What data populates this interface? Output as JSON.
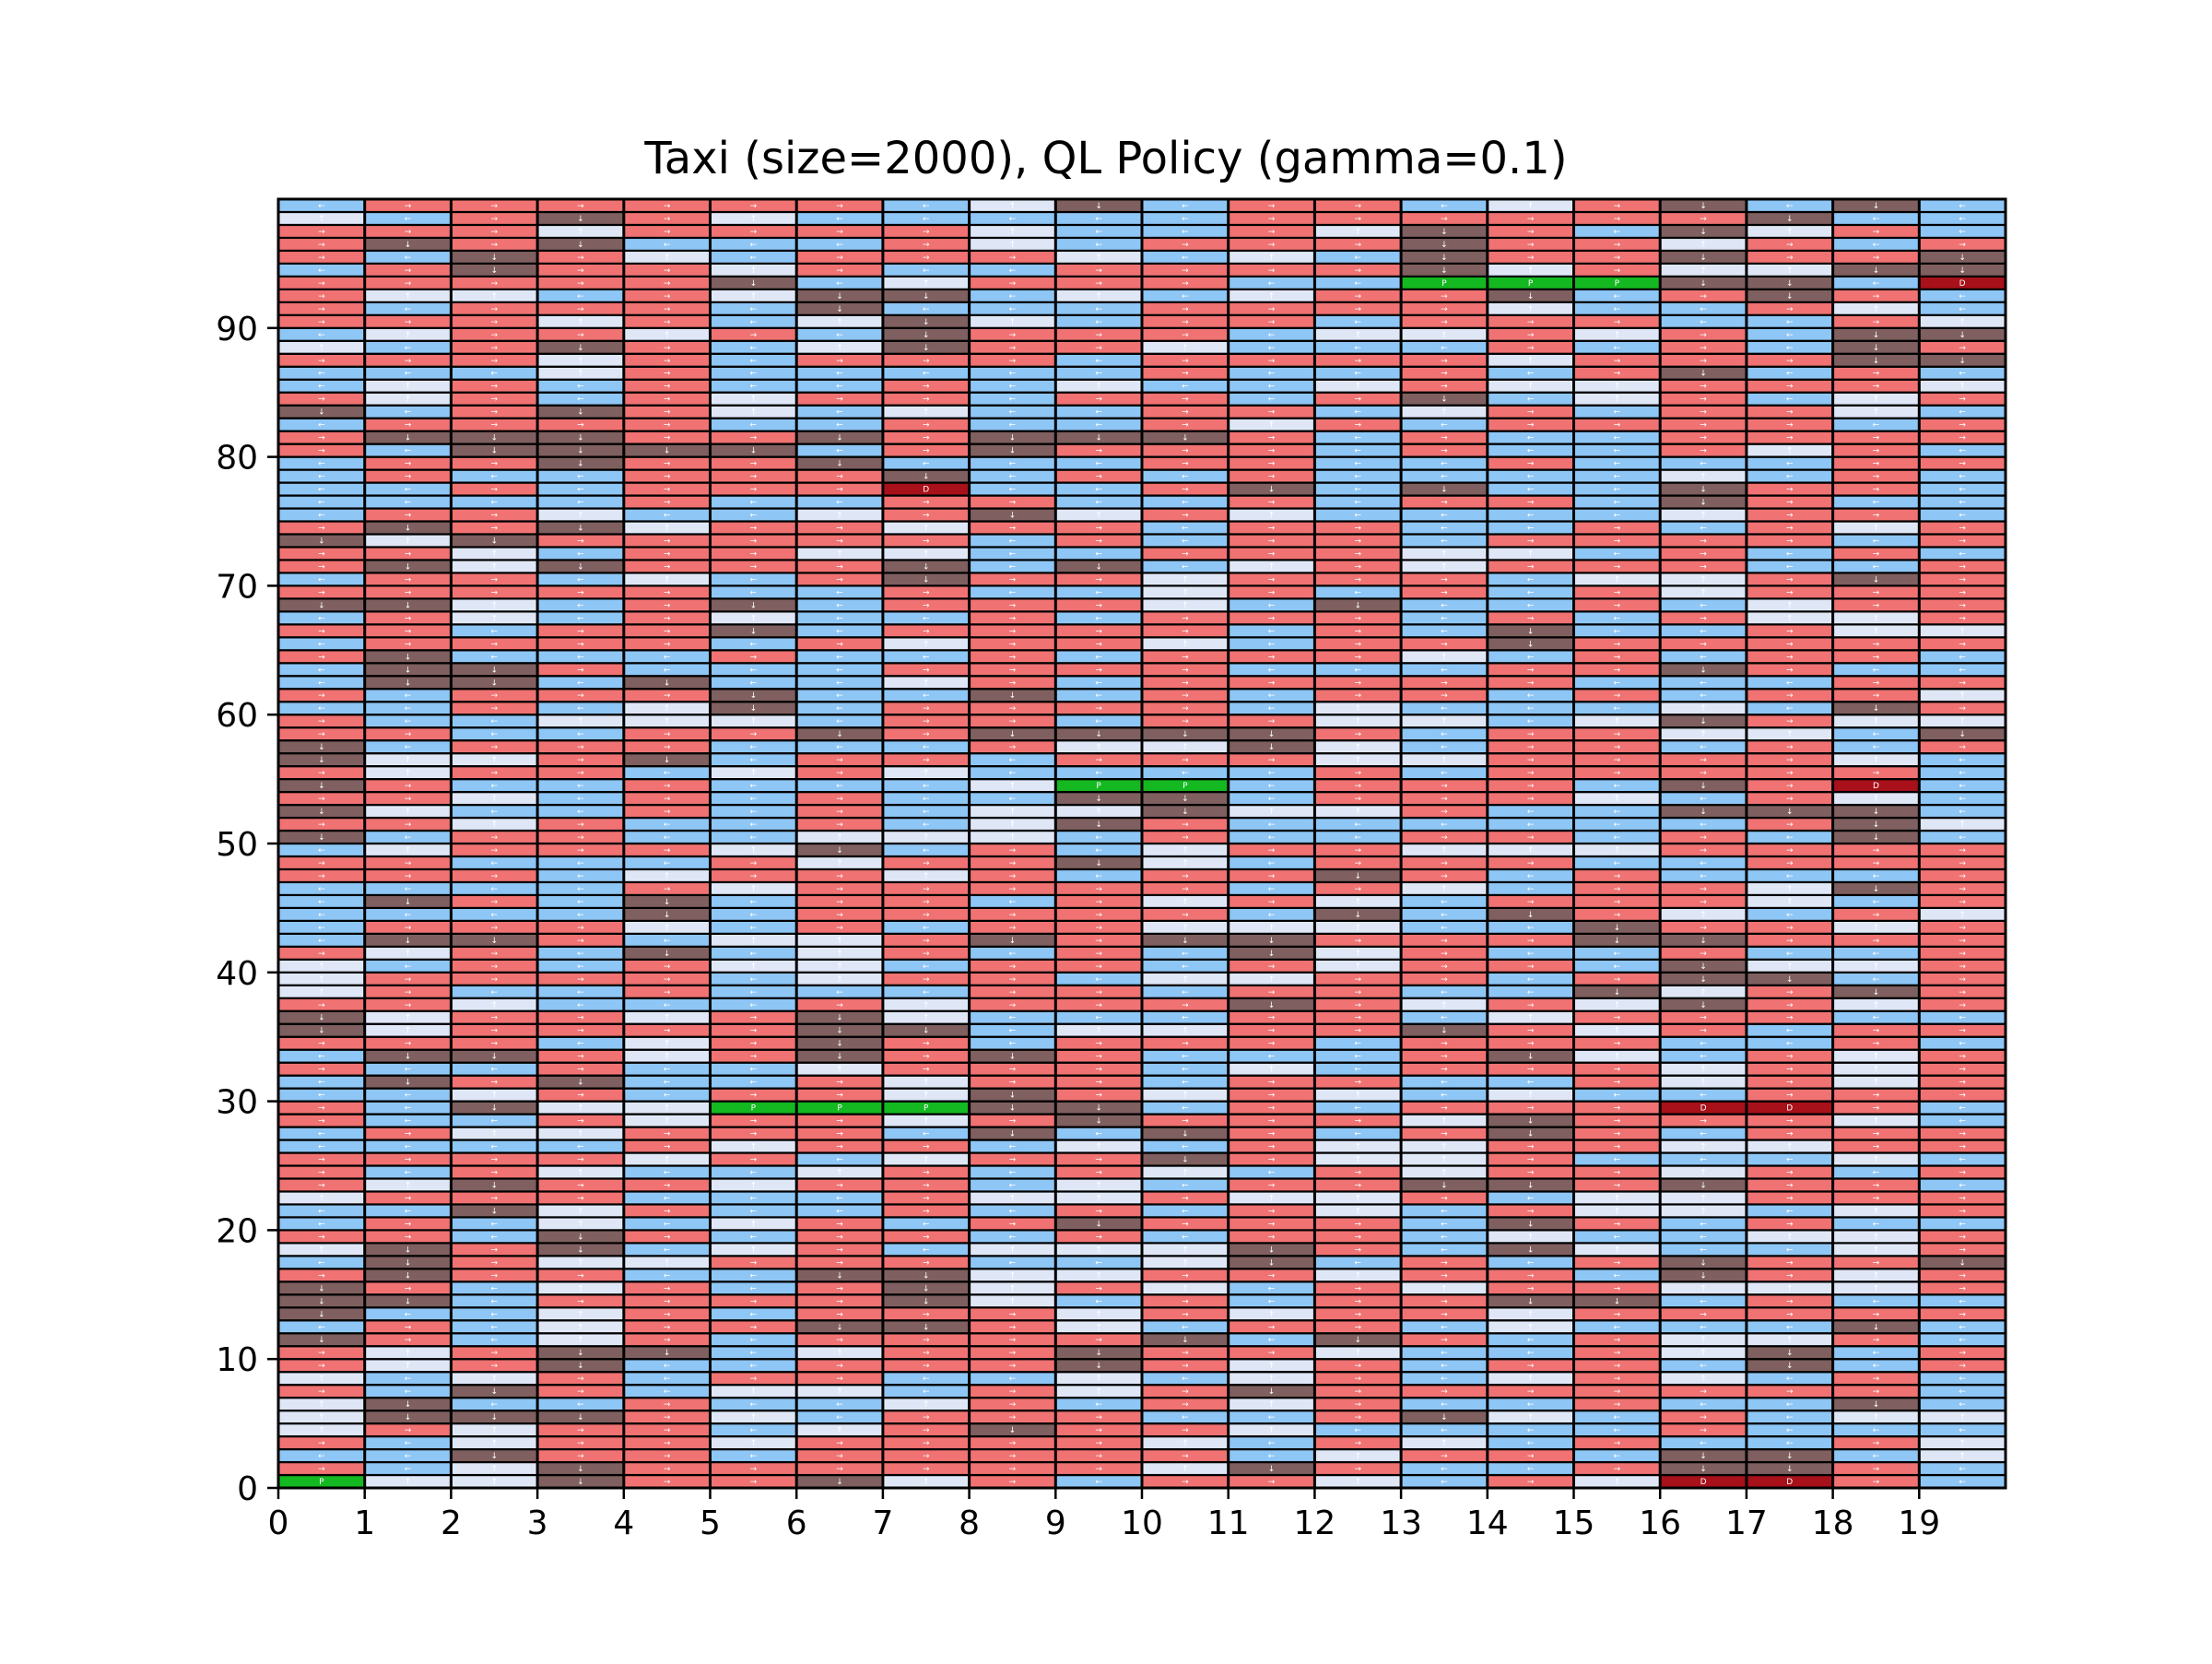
{
  "chart_data": {
    "type": "heatmap",
    "title": "Taxi (size=2000), QL Policy (gamma=0.1)",
    "xlabel": "",
    "ylabel": "",
    "n_cols": 20,
    "n_rows": 100,
    "xlim": [
      0,
      20
    ],
    "ylim": [
      0,
      100
    ],
    "x_ticks": [
      "0",
      "1",
      "2",
      "3",
      "4",
      "5",
      "6",
      "7",
      "8",
      "9",
      "10",
      "11",
      "12",
      "13",
      "14",
      "15",
      "16",
      "17",
      "18",
      "19"
    ],
    "y_ticks": [
      "0",
      "10",
      "20",
      "30",
      "40",
      "50",
      "60",
      "70",
      "80",
      "90"
    ],
    "grid": true,
    "legend": "none",
    "colors": {
      "right": "#f07272",
      "left": "#8ec6f5",
      "up": "#dfe7f7",
      "down": "#7f5f5f",
      "pickup": "#14b820",
      "dropoff": "#a8101a",
      "cell_border": "#000000"
    },
    "action_arrows": {
      "right": "→",
      "left": "←",
      "up": "↑",
      "down": "↓"
    },
    "pickup_label": "P",
    "dropoff_label": "D",
    "special_cells": [
      {
        "col": 0,
        "row": 0,
        "action": "pickup"
      },
      {
        "col": 5,
        "row": 29,
        "action": "pickup"
      },
      {
        "col": 6,
        "row": 29,
        "action": "pickup"
      },
      {
        "col": 7,
        "row": 29,
        "action": "pickup"
      },
      {
        "col": 9,
        "row": 54,
        "action": "pickup"
      },
      {
        "col": 10,
        "row": 54,
        "action": "pickup"
      },
      {
        "col": 13,
        "row": 93,
        "action": "pickup"
      },
      {
        "col": 14,
        "row": 93,
        "action": "pickup"
      },
      {
        "col": 15,
        "row": 93,
        "action": "pickup"
      },
      {
        "col": 16,
        "row": 0,
        "action": "dropoff"
      },
      {
        "col": 17,
        "row": 0,
        "action": "dropoff"
      },
      {
        "col": 16,
        "row": 29,
        "action": "dropoff"
      },
      {
        "col": 17,
        "row": 29,
        "action": "dropoff"
      },
      {
        "col": 18,
        "row": 54,
        "action": "dropoff"
      },
      {
        "col": 7,
        "row": 77,
        "action": "dropoff"
      },
      {
        "col": 19,
        "row": 93,
        "action": "dropoff"
      }
    ],
    "action_grid_rows_bottom_to_top": [
      "PUUDRRDURLRRULRUDDRL",
      "RLUDRRRRRRUDRLLRDDRL",
      "LLDRRLRRRRRLURRLDDLU",
      "RLURRURRRRULRULRLLRU",
      "URURRLURDRRULLLLRLLL",
      "UDDDRULRRRLLRDULRLUU",
      "UDLLRLLURLRURLLRLLDL",
      "RLDRLUULRURDRRRRRRRL",
      "ULURLRRLLULURLURULRL",
      "RURDLLRRRDRURLRRLDLR",
      "RURDDLURRDRRULLRUDLR",
      "DRLURLRRRRDLDRLRUURL",
      "LRLURRDDRULRRLULLLDL",
      "DLLURLRRRURURRURRRRR",
      "DDLRRRRDULRLRRDDLRLL",
      "DRLURLRDURULRURRUUUR",
      "RDRRLLDDUURRURRLDRUR",
      "LDRUURRRLLUDLRLRDRRD",
      "UDRDLURLUUUDRLDULLUR",
      "RRLDRLRRLRLRRLULLUUR",
      "LRLULURLRDRRRLDRLRLL",
      "LLDURLLRLRLRULRUULUR",
      "URRRLLLRUURUURLUURRR",
      "RUDRRURRLULRRDDRDRRL",
      "RLRULLURLRULRURRURLR",
      "RRRRURLURRDRUURLLLUL",
      "LLLLRURRLULRUURRUURR",
      "LRUURRRLDLDRLRDRLRRR",
      "RLLRURRURDRRRUDRRRUL",
      "RLDUUPPPDDLRLRRRDDRL",
      "LLURLRRUDRURULULLRRR",
      "LDRDLLRURRLRRLLRURUR",
      "RLLRLLURRRLULRRRURUR",
      "LDDRURDRDRLLLRDULRUR",
      "RRRLURDRLRRRLRRRLLRL",
      "DURRRRDDLUURRDRURLRR",
      "DURRURDULLLRRLURRRLL",
      "RRULLLRURRRDRURUDRUR",
      "URLLRLLLRRLRRLLDURDR",
      "URRRRLURRLUURRLRDDLR",
      "ULRLRUULRRLRURRLDUUR",
      "RURLDLURLRLDURLLRLLR",
      "LDDRLUURDRDDRRRDDRRR",
      "LRRRULRLRRUUULLDRRUR",
      "LLLLDLRRRRRLDLDRULRU",
      "LDRLDLRRLRURULRRRULR",
      "LLLLRURRRRRLRULRRUDR",
      "RRRLURRURLRRDRLRLLLR",
      "RRLLLRURRDULRRRLLRRR",
      "LURRRUDLRLURRUUURRRR",
      "DLRRLLUUULRLLRRLRLDL",
      "RRURLLRLUDRLLLLLLRDU",
      "DULLRLRLUUDUURLLDDDL",
      "RRULRLRLLDDLRRRULRUL",
      "DRLLRLLLUPPLRRRLDRDL",
      "RURRLURULLLLRLRRRRRL",
      "DUURDLRRLRRRUURRRRUL",
      "DLRRRLLLRUUDULRRLRLR",
      "RRLLRRDRDDDDRLRRUULD",
      "RLLUUULRRLRRUULUDRUU",
      "LLRLUDLRRRRLULLLULDR",
      "RLRRRDLLDLRLRRLRLRRU",
      "LDDLDLLURLRRRRRLLLRR",
      "LDDRLLLRRRRLLLRRDRLL",
      "RDLLLRLLRLRRRULRLRRL",
      "LRRRRLRURRULRRDRRRRR",
      "RRLRRDLRRRRLRLDLLRUU",
      "LRULRULLRLRRRLRLRUUR",
      "DDULRDLRRRULDLLRLURR",
      "RRRRRLLRLLURLRLRURRR",
      "LRRLULRDRRURRRLUURDR",
      "RDUDRRRDLDLURURRRLLR",
      "RRULRRUULLRRRUULRLRL",
      "DUDRRRRRLRLRRLRRRRLR",
      "RDRDURRURRLRRLLRLRUR",
      "LRRULLURDURULLLLURRL",
      "LLLLRLLRRLLRLRRLDRLL",
      "LLRLRRRDLLRDLDLLDRRL",
      "LRLLRRRDLRLRLLLLULRL",
      "LRRDRRDLLLRRLLRLLLRR",
      "RLDDDDLRDRRRLRLLRURL",
      "RDDDRRDRDDDRLRLLRRRR",
      "LRRRRLLRLLRURLRRRRLR",
      "DLRDRULULLRRLURLRRUL",
      "RURLRURRLRRLRDLURLUR",
      "LURLRLLRLULLURUURRRU",
      "LLLURLLLLLRLLRLRDLRL",
      "RRRURLRRRLRRRRURRRDD",
      "ULRDRLUDRRULLLRLRLDR",
      "LURRURLDRRRLUURURLDD",
      "RRRURLUDULRRLRRRLLRU",
      "RLRRRLDLLLRRRRULLRUL",
      "RUULRUDDLULURRDLRDRL",
      "RRRRRDLURRRLLPPPDDLD",
      "LRDRRURLLRRRRDURUUDD",
      "RLDRULRRRULULDRRDRRD",
      "RDRDLLLRULRRRDRRURLR",
      "RRRURRRRULLRUDRLDURL",
      "ULRDRULLLLLRRRRRRDLL",
      "LRRRRRRLUDLRRLURDLDL"
    ]
  }
}
